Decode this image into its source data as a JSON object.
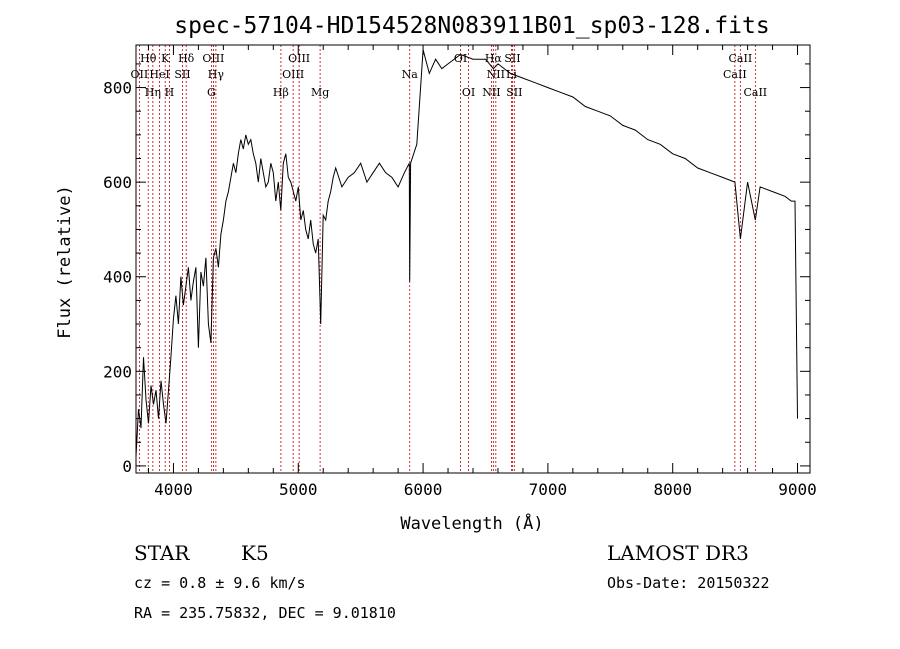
{
  "chart_data": {
    "type": "line",
    "title": "spec-57104-HD154528N083911B01_sp03-128.fits",
    "xlabel": "Wavelength (Å)",
    "ylabel": "Flux (relative)",
    "xlim": [
      3700,
      9100
    ],
    "ylim": [
      -15,
      890
    ],
    "xticks": [
      4000,
      5000,
      6000,
      7000,
      8000,
      9000
    ],
    "yticks": [
      0,
      200,
      400,
      600,
      800
    ],
    "series": [
      {
        "x": [
          3700,
          3720,
          3740,
          3760,
          3780,
          3800,
          3820,
          3840,
          3860,
          3880,
          3900,
          3920,
          3940,
          3960,
          3980,
          4000,
          4020,
          4040,
          4060,
          4080,
          4100,
          4120,
          4140,
          4160,
          4180,
          4200,
          4220,
          4240,
          4260,
          4280,
          4300,
          4320,
          4340,
          4360,
          4380,
          4400,
          4420,
          4440,
          4460,
          4480,
          4500,
          4520,
          4540,
          4560,
          4580,
          4600,
          4620,
          4640,
          4660,
          4680,
          4700,
          4720,
          4740,
          4760,
          4780,
          4800,
          4820,
          4840,
          4860,
          4880,
          4900,
          4920,
          4940,
          4960,
          4980,
          5000,
          5020,
          5040,
          5060,
          5080,
          5100,
          5120,
          5140,
          5160,
          5180,
          5200,
          5220,
          5240,
          5260,
          5280,
          5300,
          5350,
          5400,
          5450,
          5500,
          5550,
          5600,
          5650,
          5700,
          5750,
          5800,
          5850,
          5890,
          5893,
          5900,
          5950,
          6000,
          6050,
          6100,
          6150,
          6200,
          6300,
          6400,
          6500,
          6563,
          6600,
          6700,
          6800,
          6900,
          7000,
          7100,
          7200,
          7300,
          7400,
          7500,
          7600,
          7700,
          7800,
          7900,
          8000,
          8100,
          8200,
          8300,
          8400,
          8498,
          8542,
          8600,
          8662,
          8700,
          8800,
          8900,
          8950,
          8980,
          9000
        ],
        "values": [
          20,
          120,
          80,
          230,
          140,
          90,
          170,
          130,
          160,
          100,
          180,
          130,
          90,
          160,
          230,
          310,
          360,
          300,
          400,
          340,
          380,
          420,
          350,
          390,
          420,
          250,
          410,
          380,
          440,
          300,
          260,
          440,
          460,
          420,
          490,
          520,
          560,
          580,
          610,
          640,
          620,
          660,
          690,
          670,
          700,
          680,
          690,
          660,
          640,
          600,
          650,
          620,
          590,
          600,
          640,
          620,
          560,
          600,
          540,
          640,
          660,
          610,
          600,
          580,
          560,
          590,
          520,
          540,
          500,
          480,
          520,
          470,
          450,
          480,
          300,
          530,
          520,
          560,
          580,
          610,
          630,
          590,
          610,
          620,
          640,
          600,
          620,
          640,
          620,
          610,
          590,
          620,
          640,
          390,
          640,
          680,
          880,
          830,
          860,
          840,
          850,
          870,
          860,
          860,
          840,
          850,
          830,
          820,
          810,
          800,
          790,
          780,
          760,
          750,
          740,
          720,
          710,
          690,
          680,
          660,
          650,
          630,
          620,
          610,
          600,
          480,
          600,
          520,
          590,
          580,
          570,
          560,
          560,
          100
        ]
      }
    ],
    "lines": [
      {
        "label": "OII",
        "x": 3727,
        "row": 2
      },
      {
        "label": "Hθ",
        "x": 3798,
        "row": 1
      },
      {
        "label": "Hη",
        "x": 3835,
        "row": 3
      },
      {
        "label": "HeI",
        "x": 3889,
        "row": 2
      },
      {
        "label": "K",
        "x": 3934,
        "row": 1
      },
      {
        "label": "H",
        "x": 3968,
        "row": 3
      },
      {
        "label": "SII",
        "x": 4072,
        "row": 2
      },
      {
        "label": "Hδ",
        "x": 4102,
        "row": 1
      },
      {
        "label": "G",
        "x": 4304,
        "row": 3
      },
      {
        "label": "OIII",
        "x": 4320,
        "row": 1
      },
      {
        "label": "Hγ",
        "x": 4340,
        "row": 2
      },
      {
        "label": "Hβ",
        "x": 4861,
        "row": 3
      },
      {
        "label": "OIII",
        "x": 4959,
        "row": 2
      },
      {
        "label": "OIII",
        "x": 5007,
        "row": 1
      },
      {
        "label": "Mg",
        "x": 5175,
        "row": 3
      },
      {
        "label": "Na",
        "x": 5893,
        "row": 2
      },
      {
        "label": "OI",
        "x": 6300,
        "row": 1
      },
      {
        "label": "OI",
        "x": 6364,
        "row": 3
      },
      {
        "label": "NII",
        "x": 6548,
        "row": 3
      },
      {
        "label": "Hα",
        "x": 6563,
        "row": 1
      },
      {
        "label": "NII",
        "x": 6583,
        "row": 2
      },
      {
        "label": "Li",
        "x": 6708,
        "row": 2
      },
      {
        "label": "SII",
        "x": 6716,
        "row": 1
      },
      {
        "label": "SII",
        "x": 6731,
        "row": 3
      },
      {
        "label": "CaII",
        "x": 8498,
        "row": 2
      },
      {
        "label": "CaII",
        "x": 8542,
        "row": 1
      },
      {
        "label": "CaII",
        "x": 8662,
        "row": 3
      }
    ]
  },
  "info": {
    "class": "STAR",
    "subclass": "K5",
    "survey": "LAMOST DR3",
    "cz": "cz = 0.8 ± 9.6 km/s",
    "obsdate": "Obs-Date: 20150322",
    "radec": "RA = 235.75832, DEC =    9.01810"
  },
  "colors": {
    "spectrum": "#000000",
    "line_markers": "#c00000"
  }
}
